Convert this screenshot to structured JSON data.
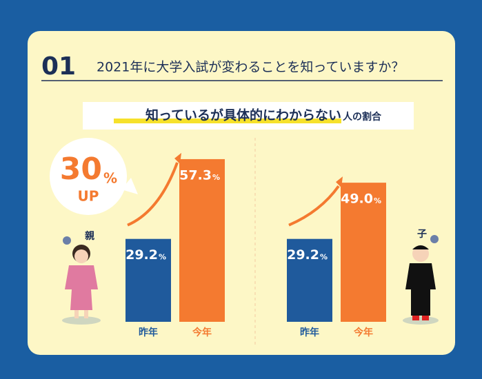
{
  "header": {
    "number": "01",
    "title": "2021年に大学入試が変わることを知っていますか？"
  },
  "subtitle": {
    "main": "知っているが具体的にわからない",
    "suffix": "人の割合"
  },
  "callout": {
    "value": 30,
    "unit": "%",
    "label": "UP"
  },
  "chart_data": [
    {
      "type": "bar",
      "person": "親",
      "categories": [
        "昨年",
        "今年"
      ],
      "values": [
        29.2,
        57.3
      ],
      "value_labels": [
        "29.2",
        "57.3"
      ],
      "unit": "%",
      "colors": [
        "#1f5a9c",
        "#f47a30"
      ]
    },
    {
      "type": "bar",
      "person": "子",
      "categories": [
        "昨年",
        "今年"
      ],
      "values": [
        29.2,
        49.0
      ],
      "value_labels": [
        "29.2",
        "49.0"
      ],
      "unit": "%",
      "colors": [
        "#1f5a9c",
        "#f47a30"
      ]
    }
  ]
}
